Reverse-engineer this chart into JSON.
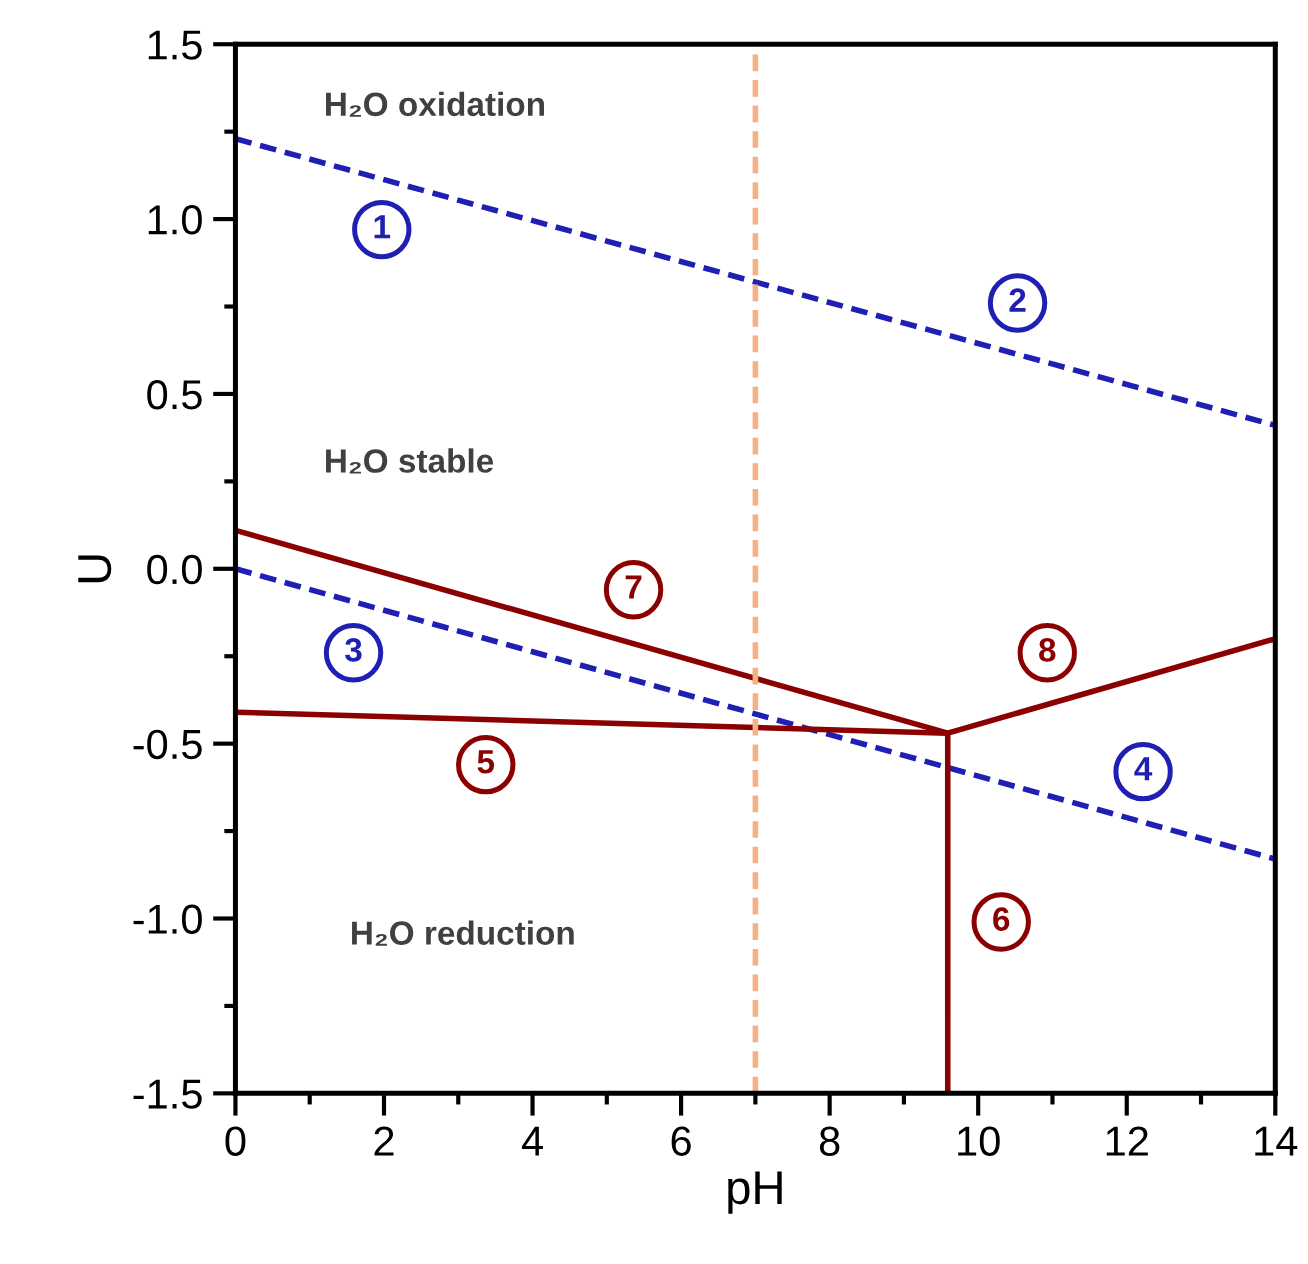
{
  "chart_data": {
    "type": "line",
    "xlabel": "pH",
    "ylabel": "U",
    "series": [
      {
        "color": "#1f1fb4",
        "line_style": "dashed",
        "x": [
          0,
          14
        ],
        "values": [
          1.23,
          0.41
        ]
      },
      {
        "color": "#1f1fb4",
        "line_style": "dashed",
        "x": [
          0,
          14
        ],
        "values": [
          0.0,
          -0.83
        ]
      },
      {
        "color": "#8b0000",
        "line_style": "solid",
        "x": [
          0,
          9.59,
          14
        ],
        "values": [
          -0.41,
          -0.47,
          -0.2
        ]
      },
      {
        "color": "#8b0000",
        "line_style": "solid",
        "x": [
          0,
          9.59,
          9.59
        ],
        "values": [
          0.11,
          -0.47,
          -1.5
        ]
      }
    ],
    "ref_lines": [
      {
        "axis": "x",
        "value": 7,
        "color": "#f4b183",
        "line_style": "dashed"
      }
    ],
    "annotations": [
      "H₂O oxidation",
      "H₂O stable",
      "H₂O reduction",
      {
        "text": "1",
        "x": 1.97,
        "y": 0.97
      },
      {
        "text": "2",
        "x": 10.53,
        "y": 0.76
      },
      {
        "text": "3",
        "x": 1.59,
        "y": -0.24
      },
      {
        "text": "4",
        "x": 12.22,
        "y": -0.58
      },
      {
        "text": "5",
        "x": 3.37,
        "y": -0.56
      },
      {
        "text": "6",
        "x": 10.31,
        "y": -1.01
      },
      {
        "text": "7",
        "x": 5.36,
        "y": -0.06
      },
      {
        "text": "8",
        "x": 10.93,
        "y": -0.24
      }
    ],
    "xlim": [
      0,
      14
    ],
    "ylim": [
      -1.5,
      1.5
    ],
    "xticks": [
      0,
      {
        "value": 1,
        "label": null
      },
      2,
      {
        "value": 3,
        "label": null
      },
      4,
      {
        "value": 5,
        "label": null
      },
      6,
      {
        "value": 7,
        "label": null
      },
      8,
      {
        "value": 9,
        "label": null
      },
      10,
      {
        "value": 11,
        "label": null
      },
      12,
      {
        "value": 13,
        "label": null
      },
      14
    ],
    "yticks": [
      {
        "value": -1.5,
        "label": "-1.5"
      },
      {
        "value": -1.25,
        "label": null
      },
      {
        "value": -1,
        "label": "-1.0"
      },
      {
        "value": -0.75,
        "label": null
      },
      {
        "value": -0.5,
        "label": "-0.5"
      },
      {
        "value": -0.25,
        "label": null
      },
      {
        "value": 0,
        "label": "0.0"
      },
      {
        "value": 0.25,
        "label": null
      },
      {
        "value": 0.5,
        "label": "0.5"
      },
      {
        "value": 0.75,
        "label": null
      },
      {
        "value": 1,
        "label": "1.0"
      },
      {
        "value": 1.25,
        "label": null
      },
      {
        "value": 1.5,
        "label": "1.5"
      }
    ],
    "grid": false,
    "legend": false
  }
}
